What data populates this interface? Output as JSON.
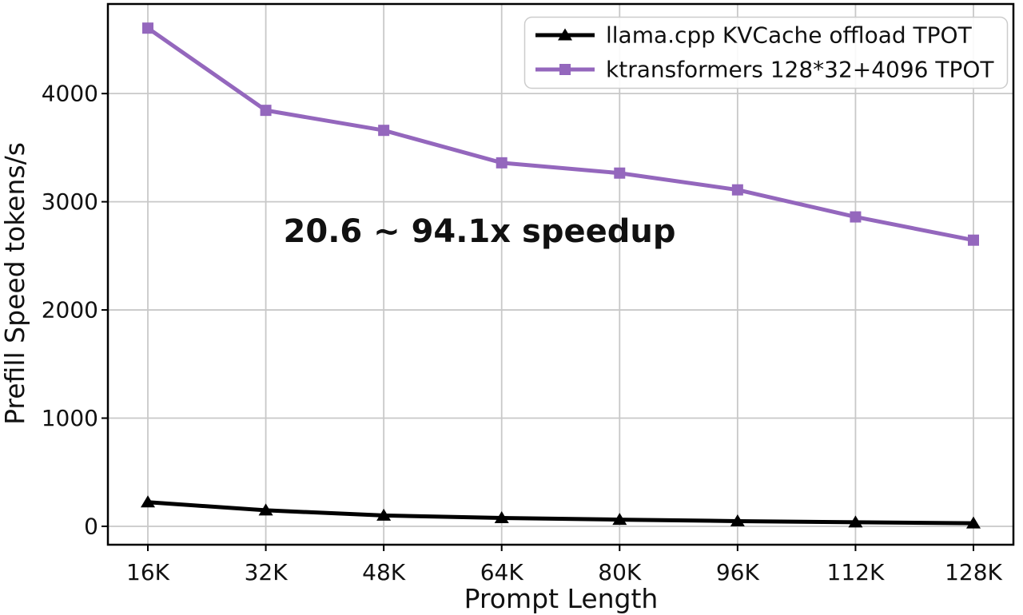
{
  "chart_data": {
    "type": "line",
    "title": "",
    "xlabel": "Prompt Length",
    "ylabel": "Prefill Speed tokens/s",
    "categories": [
      "16K",
      "32K",
      "48K",
      "64K",
      "80K",
      "96K",
      "112K",
      "128K"
    ],
    "yticks": [
      0,
      1000,
      2000,
      3000,
      4000
    ],
    "ylim": [
      -170,
      4828
    ],
    "grid": true,
    "legend_position": "upper-right",
    "series": [
      {
        "name": "llama.cpp KVCache offload TPOT",
        "color": "#000000",
        "marker": "triangle",
        "values": [
          223,
          148,
          100,
          77,
          62,
          48,
          38,
          28
        ]
      },
      {
        "name": "ktransformers 128*32+4096 TPOT",
        "color": "#9467bd",
        "marker": "square",
        "values": [
          4605,
          3845,
          3660,
          3360,
          3265,
          3110,
          2860,
          2645
        ]
      }
    ],
    "annotation": {
      "text": "20.6 ~ 94.1x speedup",
      "color": "#e8332a"
    }
  },
  "colors": {
    "background": "#ffffff",
    "grid": "#c8c8c8",
    "spine": "#000000",
    "legend_border": "#cccccc"
  }
}
